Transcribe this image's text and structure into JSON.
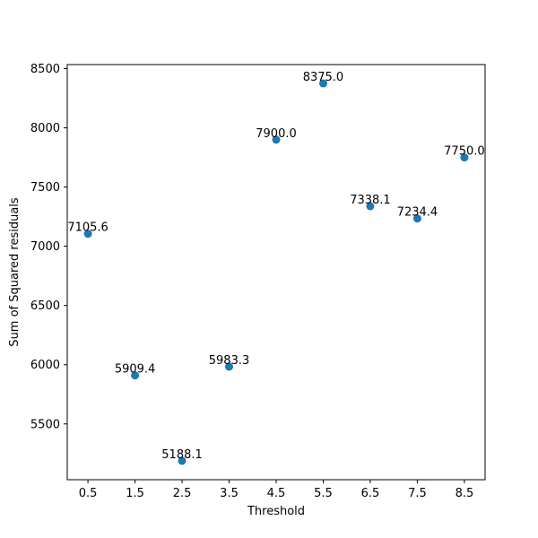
{
  "chart_data": {
    "type": "scatter",
    "title": "",
    "xlabel": "Threshold",
    "ylabel": "Sum of Squared residuals",
    "x": [
      0.5,
      1.5,
      2.5,
      3.5,
      4.5,
      5.5,
      6.5,
      7.5,
      8.5
    ],
    "y": [
      7105.6,
      5909.4,
      5188.1,
      5983.3,
      7900.0,
      8375.0,
      7338.1,
      7234.4,
      7750.0
    ],
    "point_labels": [
      "7105.6",
      "5909.4",
      "5188.1",
      "5983.3",
      "7900.0",
      "8375.0",
      "7338.1",
      "7234.4",
      "7750.0"
    ],
    "xticks": [
      0.5,
      1.5,
      2.5,
      3.5,
      4.5,
      5.5,
      6.5,
      7.5,
      8.5
    ],
    "xtick_labels": [
      "0.5",
      "1.5",
      "2.5",
      "3.5",
      "4.5",
      "5.5",
      "6.5",
      "7.5",
      "8.5"
    ],
    "yticks": [
      5500,
      6000,
      6500,
      7000,
      7500,
      8000,
      8500
    ],
    "ytick_labels": [
      "5500",
      "6000",
      "6500",
      "7000",
      "7500",
      "8000",
      "8500"
    ],
    "xlim": [
      0.06,
      8.94
    ],
    "ylim": [
      5028.7,
      8534.4
    ],
    "grid": false,
    "legend": "none",
    "marker_color": "#1f77b4"
  }
}
